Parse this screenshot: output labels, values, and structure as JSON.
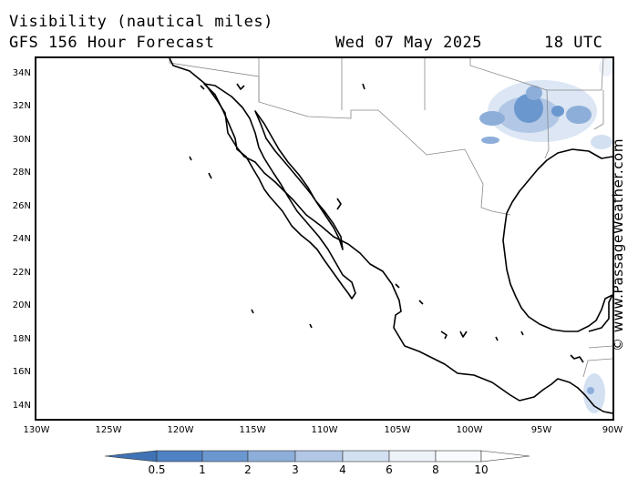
{
  "header": {
    "title": "Visibility (nautical miles)",
    "subtitle": "GFS 156 Hour Forecast",
    "date": "Wed 07 May 2025",
    "time": "18 UTC"
  },
  "map": {
    "region": "Mexico and Gulf of Mexico",
    "lon_range": [
      -130,
      -90
    ],
    "lat_range": [
      13,
      35
    ],
    "lat_ticks": [
      "34N",
      "32N",
      "30N",
      "28N",
      "26N",
      "24N",
      "22N",
      "20N",
      "18N",
      "16N",
      "14N"
    ],
    "lon_ticks": [
      "130W",
      "125W",
      "120W",
      "115W",
      "110W",
      "105W",
      "100W",
      "95W",
      "90W"
    ],
    "features": {
      "reduced_visibility_areas": "Texas / northern Gulf coast, Louisiana, Guatemala coast"
    }
  },
  "credit": "© www.PassageWeather.com",
  "legend": {
    "labels": [
      "0.5",
      "1",
      "2",
      "3",
      "4",
      "6",
      "8",
      "10"
    ],
    "colors": [
      "#3f73b5",
      "#4e82c4",
      "#6b97cf",
      "#8daed9",
      "#b1c7e5",
      "#d3e0f1",
      "#eef3fa",
      "#ffffff"
    ]
  }
}
